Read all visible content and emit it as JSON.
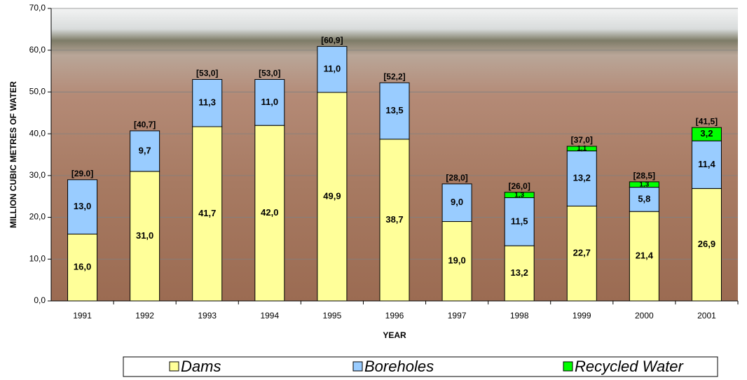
{
  "chart_data": {
    "type": "stacked_bar",
    "y_label": "MILLION CUBIC METRES OF WATER",
    "x_label": "YEAR",
    "categories": [
      "1991",
      "1992",
      "1993",
      "1994",
      "1995",
      "1996",
      "1997",
      "1998",
      "1999",
      "2000",
      "2001"
    ],
    "series": [
      {
        "name": "Dams",
        "color": "#ffff99",
        "values": [
          16.0,
          31.0,
          41.7,
          42.0,
          49.9,
          38.7,
          19.0,
          13.2,
          22.7,
          21.4,
          26.9
        ],
        "value_labels": [
          "16,0",
          "31,0",
          "41,7",
          "42,0",
          "49,9",
          "38,7",
          "19,0",
          "13,2",
          "22,7",
          "21,4",
          "26,9"
        ]
      },
      {
        "name": "Boreholes",
        "color": "#99ccff",
        "values": [
          13.0,
          9.7,
          11.3,
          11.0,
          11.0,
          13.5,
          9.0,
          11.5,
          13.2,
          5.8,
          11.4
        ],
        "value_labels": [
          "13,0",
          "9,7",
          "11,3",
          "11,0",
          "11,0",
          "13,5",
          "9,0",
          "11,5",
          "13,2",
          "5,8",
          "11,4"
        ]
      },
      {
        "name": "Recycled Water",
        "color": "#00ff00",
        "values": [
          null,
          null,
          null,
          null,
          null,
          null,
          null,
          1.3,
          1.1,
          1.3,
          3.2
        ],
        "value_labels": [
          null,
          null,
          null,
          null,
          null,
          null,
          null,
          "1,3",
          "1,1",
          "1,3",
          "3,2"
        ]
      }
    ],
    "totals": {
      "values": [
        29.0,
        40.7,
        53.0,
        53.0,
        60.9,
        52.2,
        28.0,
        26.0,
        37.0,
        28.5,
        41.5
      ],
      "value_labels": [
        "[29.0]",
        "[40,7]",
        "[53,0]",
        "[53,0]",
        "[60,9]",
        "[52,2]",
        "[28,0]",
        "[26,0]",
        "[37,0]",
        "[28,5]",
        "[41,5]"
      ]
    },
    "ylim": [
      0,
      70
    ],
    "yticks": [
      {
        "value": 0,
        "label": "0,0"
      },
      {
        "value": 10,
        "label": "10,0"
      },
      {
        "value": 20,
        "label": "20,0"
      },
      {
        "value": 30,
        "label": "30,0"
      },
      {
        "value": 40,
        "label": "40,0"
      },
      {
        "value": 50,
        "label": "50,0"
      },
      {
        "value": 60,
        "label": "60,0"
      },
      {
        "value": 70,
        "label": "70,0"
      }
    ],
    "grid": true
  }
}
